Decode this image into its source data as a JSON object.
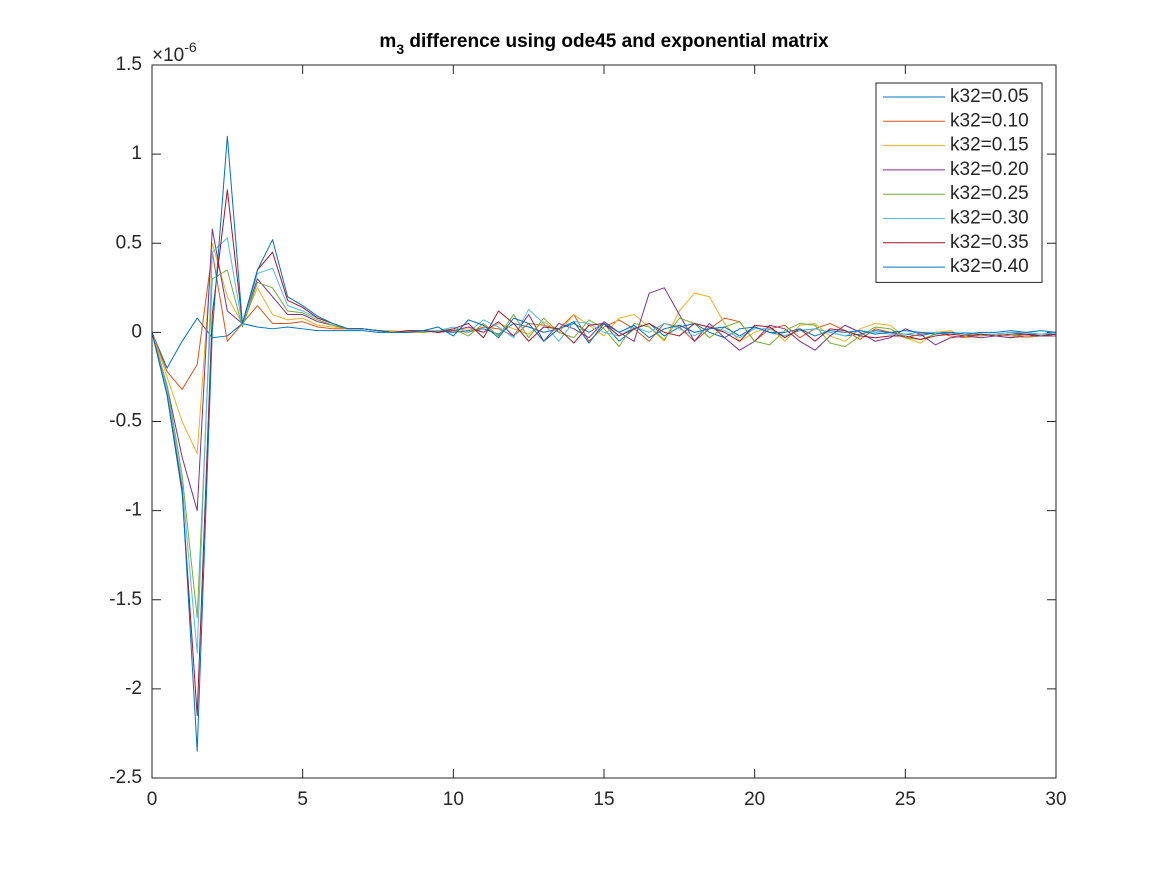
{
  "chart_data": {
    "type": "line",
    "title": {
      "main": "m",
      "sub": "3",
      "rest": " difference using ode45 and exponential matrix"
    },
    "exponent": {
      "base": "×10",
      "power": "-6"
    },
    "x": [
      0,
      0.5,
      1,
      1.5,
      2,
      2.5,
      3,
      3.5,
      4,
      4.5,
      5,
      5.5,
      6,
      6.5,
      7,
      7.5,
      8,
      8.5,
      9,
      9.5,
      10,
      10.5,
      11,
      11.5,
      12,
      12.5,
      13,
      13.5,
      14,
      14.5,
      15,
      15.5,
      16,
      16.5,
      17,
      17.5,
      18,
      18.5,
      19,
      19.5,
      20,
      20.5,
      21,
      21.5,
      22,
      22.5,
      23,
      23.5,
      24,
      24.5,
      25,
      25.5,
      26,
      26.5,
      27,
      27.5,
      28,
      28.5,
      29,
      29.5,
      30
    ],
    "xlim": [
      0,
      30
    ],
    "xticks": [
      0,
      5,
      10,
      15,
      20,
      25,
      30
    ],
    "ylim": [
      -2.5,
      1.5
    ],
    "yticks": [
      -2.5,
      -2,
      -1.5,
      -1,
      -0.5,
      0,
      0.5,
      1,
      1.5
    ],
    "legend": "top-right",
    "series": [
      {
        "name": "k32=0.05",
        "color": "#0072BD",
        "values": [
          0,
          -0.2,
          -0.05,
          0.08,
          -0.03,
          -0.02,
          0.05,
          0.03,
          0.02,
          0.03,
          0.02,
          0.01,
          0.01,
          0.01,
          0.01,
          0,
          0,
          0,
          0,
          0.01,
          0,
          0.01,
          0.02,
          -0.01,
          0.05,
          0.03,
          0,
          0.02,
          0.05,
          0,
          0.05,
          -0.05,
          0.02,
          0.05,
          -0.02,
          0.03,
          0.05,
          0,
          -0.03,
          0.02,
          0.03,
          0,
          -0.02,
          0.01,
          0.02,
          0,
          -0.02,
          -0.01,
          0.01,
          0,
          -0.01,
          -0.02,
          0,
          0,
          -0.01,
          -0.02,
          -0.01,
          0,
          -0.01,
          -0.01,
          -0.01
        ]
      },
      {
        "name": "k32=0.10",
        "color": "#D95319",
        "values": [
          0,
          -0.22,
          -0.32,
          -0.18,
          0.45,
          -0.05,
          0.05,
          0.15,
          0.05,
          0.05,
          0.06,
          0.03,
          0.02,
          0.02,
          0.02,
          0.01,
          0,
          0,
          0.01,
          0,
          0.01,
          0,
          0.03,
          0.02,
          -0.02,
          0.05,
          0.04,
          0.02,
          0.1,
          -0.05,
          0.03,
          0.07,
          0.02,
          -0.05,
          0.05,
          0.03,
          -0.05,
          0.02,
          0.08,
          0.06,
          -0.05,
          0.02,
          0.04,
          -0.03,
          0.02,
          0.05,
          0.01,
          -0.04,
          0.02,
          0,
          -0.03,
          -0.01,
          0,
          -0.02,
          -0.03,
          -0.01,
          -0.02,
          -0.03,
          -0.01,
          -0.02,
          -0.02
        ]
      },
      {
        "name": "k32=0.15",
        "color": "#EDB120",
        "values": [
          0,
          -0.25,
          -0.5,
          -0.68,
          0.5,
          0.2,
          0.05,
          0.25,
          0.1,
          0.07,
          0.08,
          0.04,
          0.03,
          0.02,
          0.02,
          0.01,
          0.01,
          0,
          0,
          0.01,
          0.01,
          0.02,
          0,
          0.05,
          0.02,
          -0.01,
          0.06,
          0,
          0.1,
          0.04,
          -0.02,
          0.08,
          0.1,
          0.03,
          -0.05,
          0.12,
          0.22,
          0.2,
          0.05,
          -0.05,
          0,
          0.03,
          -0.05,
          0.04,
          0.05,
          -0.02,
          -0.05,
          0.02,
          0.05,
          0.04,
          -0.03,
          -0.06,
          0,
          0.01,
          -0.03,
          -0.02,
          -0.01,
          -0.02,
          -0.03,
          -0.02,
          -0.02
        ]
      },
      {
        "name": "k32=0.20",
        "color": "#7E2F8E",
        "values": [
          0,
          -0.3,
          -0.7,
          -1.0,
          0.58,
          0.12,
          0.05,
          0.3,
          0.2,
          0.1,
          0.1,
          0.06,
          0.04,
          0.02,
          0.02,
          0.01,
          0,
          0,
          0.01,
          0,
          0.01,
          0.03,
          0,
          0.06,
          -0.02,
          0.1,
          -0.05,
          0.05,
          0.02,
          -0.03,
          0.06,
          0,
          -0.05,
          0.22,
          0.25,
          0.1,
          -0.05,
          0.05,
          -0.03,
          -0.1,
          -0.05,
          0.04,
          0.02,
          -0.05,
          -0.1,
          -0.02,
          0.04,
          0,
          -0.05,
          -0.03,
          0.02,
          -0.01,
          -0.07,
          -0.03,
          -0.02,
          -0.03,
          -0.02,
          -0.03,
          -0.02,
          -0.02,
          -0.02
        ]
      },
      {
        "name": "k32=0.25",
        "color": "#77AC30",
        "values": [
          0,
          -0.3,
          -0.8,
          -1.6,
          0.3,
          0.35,
          0.03,
          0.28,
          0.25,
          0.12,
          0.11,
          0.07,
          0.04,
          0.02,
          0.02,
          0.01,
          0,
          0.01,
          0,
          0.01,
          0.02,
          -0.02,
          0.05,
          -0.02,
          0.1,
          -0.03,
          0.08,
          0,
          -0.03,
          0.07,
          0.02,
          -0.08,
          0.05,
          0.03,
          -0.04,
          0.08,
          0.05,
          -0.03,
          0.03,
          0.06,
          -0.05,
          -0.07,
          0.01,
          0.05,
          0.04,
          -0.06,
          -0.08,
          -0.02,
          0.03,
          0.02,
          -0.03,
          -0.04,
          -0.01,
          0,
          -0.01,
          -0.02,
          -0.01,
          -0.02,
          -0.01,
          -0.02,
          -0.01
        ]
      },
      {
        "name": "k32=0.30",
        "color": "#4DBEEE",
        "values": [
          0,
          -0.32,
          -0.85,
          -1.8,
          0.45,
          0.53,
          0.04,
          0.33,
          0.36,
          0.15,
          0.12,
          0.08,
          0.05,
          0.02,
          0.02,
          0.01,
          0,
          0,
          0.01,
          0.01,
          0.03,
          0,
          0.07,
          0.03,
          -0.03,
          0.13,
          0.05,
          -0.05,
          0.06,
          0.05,
          0,
          -0.02,
          0.03,
          0,
          0.05,
          0.02,
          -0.02,
          0.03,
          0.01,
          -0.03,
          0.02,
          0.02,
          -0.02,
          0.01,
          0.02,
          0,
          -0.02,
          0.01,
          0,
          -0.01,
          -0.01,
          0,
          0,
          -0.01,
          0,
          -0.01,
          -0.01,
          0,
          0,
          -0.01,
          0
        ]
      },
      {
        "name": "k32=0.35",
        "color": "#A2142F",
        "values": [
          0,
          -0.35,
          -0.9,
          -2.15,
          0.1,
          0.8,
          0.05,
          0.35,
          0.45,
          0.18,
          0.14,
          0.08,
          0.05,
          0.02,
          0.02,
          0.01,
          0,
          0.01,
          0.01,
          0,
          0.02,
          0.05,
          -0.03,
          0.12,
          0.05,
          -0.05,
          0.03,
          0.02,
          -0.06,
          0.04,
          0.05,
          -0.02,
          0.02,
          0.05,
          0,
          -0.02,
          0.05,
          0.03,
          0,
          -0.05,
          0.04,
          0.03,
          -0.03,
          0.02,
          -0.05,
          0.02,
          0.01,
          -0.02,
          -0.03,
          -0.02,
          -0.02,
          -0.04,
          -0.02,
          -0.01,
          -0.02,
          -0.01,
          -0.02,
          -0.01,
          -0.01,
          -0.02,
          -0.01
        ]
      },
      {
        "name": "k32=0.40",
        "color": "#0072BD",
        "values": [
          0,
          -0.35,
          -0.88,
          -2.35,
          0.0,
          1.1,
          0.05,
          0.35,
          0.52,
          0.2,
          0.15,
          0.09,
          0.05,
          0.02,
          0.02,
          0.01,
          0,
          0,
          0.01,
          0.03,
          -0.02,
          0.07,
          0.04,
          -0.03,
          0.08,
          0.05,
          -0.05,
          0.02,
          0.06,
          -0.06,
          0.05,
          0,
          0.04,
          -0.03,
          0.02,
          0.04,
          0,
          0.02,
          0.03,
          -0.02,
          0.03,
          0,
          0,
          0.02,
          -0.02,
          0.01,
          0,
          0.01,
          -0.01,
          0,
          0.01,
          0,
          -0.01,
          0,
          -0.01,
          0,
          0,
          0.01,
          0,
          0.01,
          0
        ]
      }
    ]
  }
}
